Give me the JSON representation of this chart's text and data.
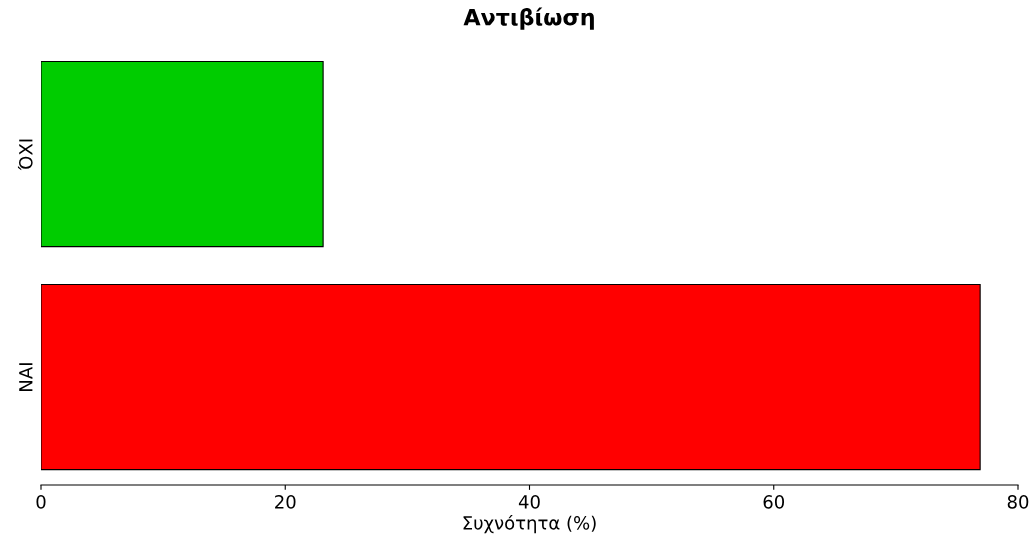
{
  "chart_data": {
    "type": "bar",
    "orientation": "horizontal",
    "title": "Αντιβίωση",
    "xlabel": "Συχνότητα (%)",
    "categories": [
      "ΌΧΙ",
      "ΝΑΙ"
    ],
    "values": [
      23.1,
      76.9
    ],
    "colors": [
      "#00cc00",
      "#ff0000"
    ],
    "xlim": [
      0,
      80
    ],
    "xticks": [
      0,
      20,
      40,
      60,
      80
    ],
    "grid": false,
    "legend": false
  }
}
